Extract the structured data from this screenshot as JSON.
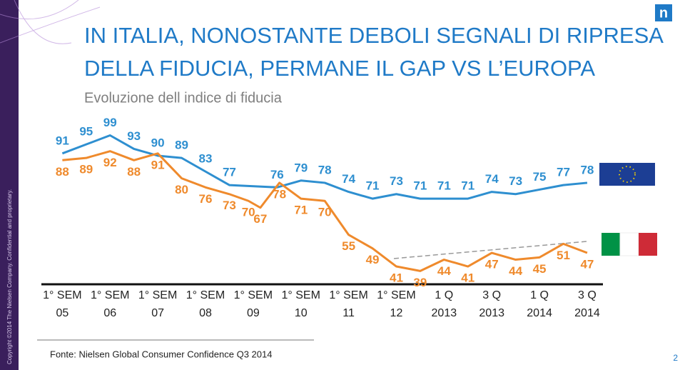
{
  "copyright": "Copyright ©2014 The Nielsen Company. Confidential and proprietary.",
  "logo": "n",
  "page_number": "2",
  "chart_data": {
    "type": "line",
    "title": [
      "IN ITALIA, NONOSTANTE DEBOLI SEGNALI DI RIPRESA",
      "DELLA FIDUCIA, PERMANE IL GAP VS L’EUROPA"
    ],
    "subtitle": "Evoluzione dell indice di fiducia",
    "source": "Fonte: Nielsen Global Consumer Confidence Q3 2014",
    "x_tick_labels": [
      [
        "1° SEM",
        "05"
      ],
      [
        "1° SEM",
        "06"
      ],
      [
        "1° SEM",
        "07"
      ],
      [
        "1° SEM",
        "08"
      ],
      [
        "1° SEM",
        "09"
      ],
      [
        "1° SEM",
        "10"
      ],
      [
        "1° SEM",
        "11"
      ],
      [
        "1° SEM",
        "12"
      ],
      [
        "1 Q",
        "2013"
      ],
      [
        "3 Q",
        "2013"
      ],
      [
        "1 Q",
        "2014"
      ],
      [
        "3 Q",
        "2014"
      ]
    ],
    "xlim": [
      -0.2,
      11.3
    ],
    "ylim": [
      35,
      102
    ],
    "series": [
      {
        "color": "#2e8fd0",
        "x": [
          0,
          0.5,
          1,
          1.5,
          2,
          2.5,
          3,
          3.5,
          4.5,
          5,
          5.5,
          6,
          6.5,
          7,
          7.5,
          8,
          8.5,
          9,
          9.5,
          10,
          10.5,
          11
        ],
        "values": [
          91,
          95,
          99,
          93,
          90,
          89,
          83,
          77,
          76,
          79,
          78,
          74,
          71,
          73,
          71,
          71,
          71,
          74,
          73,
          75,
          77,
          78
        ]
      },
      {
        "color": "#ef8a2c",
        "x": [
          0,
          0.5,
          1,
          1.5,
          2,
          2.5,
          3,
          3.5,
          3.9,
          4.15,
          4.55,
          5,
          5.5,
          6,
          6.5,
          7,
          7.5,
          8,
          8.5,
          9,
          9.5,
          10,
          10.5,
          11
        ],
        "values": [
          88,
          89,
          92,
          88,
          91,
          80,
          76,
          73,
          70,
          67,
          78,
          71,
          70,
          55,
          49,
          41,
          39,
          44,
          41,
          47,
          44,
          45,
          51,
          47
        ]
      }
    ]
  }
}
